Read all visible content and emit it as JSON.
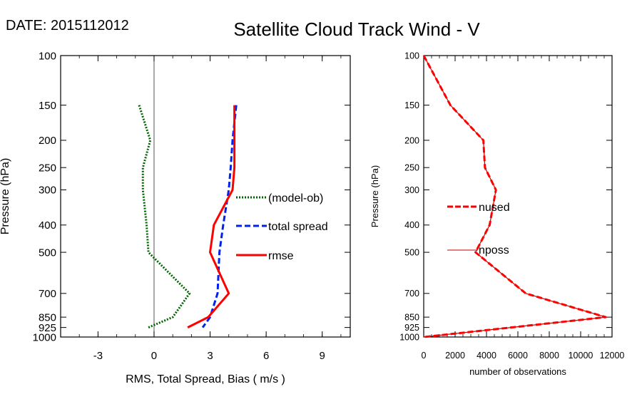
{
  "header": {
    "date_label": "DATE: 2015112012",
    "title": "Satellite Cloud Track Wind - V"
  },
  "chart_data": [
    {
      "type": "line",
      "ylabel": "Pressure (hPa)",
      "xlabel": "RMS, Total Spread, Bias ( m/s )",
      "xlim": [
        -5,
        10.5
      ],
      "xticks": [
        -3,
        0,
        3,
        6,
        9
      ],
      "ylim": [
        1000,
        100
      ],
      "yscale": "log",
      "yticks": [
        100,
        150,
        200,
        250,
        300,
        400,
        500,
        700,
        850,
        925,
        1000
      ],
      "zero_line": true,
      "legend_position": "right-middle",
      "series": [
        {
          "name": "(model-ob)",
          "color": "#006400",
          "style": "dotted",
          "x": [
            -0.8,
            -0.2,
            -0.6,
            -0.6,
            -0.4,
            -0.3,
            1.9,
            1.0,
            -0.3
          ],
          "y": [
            150,
            200,
            250,
            300,
            400,
            500,
            700,
            850,
            925
          ]
        },
        {
          "name": "total spread",
          "color": "#0022ee",
          "style": "dashed",
          "x": [
            4.4,
            4.2,
            4.1,
            4.0,
            3.7,
            3.5,
            3.4,
            3.0,
            2.6
          ],
          "y": [
            150,
            200,
            250,
            300,
            400,
            500,
            700,
            850,
            925
          ]
        },
        {
          "name": "rmse",
          "color": "#ff0000",
          "style": "solid",
          "x": [
            4.3,
            4.3,
            4.3,
            4.2,
            3.2,
            3.0,
            4.0,
            2.9,
            1.8
          ],
          "y": [
            150,
            200,
            250,
            300,
            400,
            500,
            700,
            850,
            925
          ]
        }
      ]
    },
    {
      "type": "line",
      "ylabel": "Pressure (hPa)",
      "xlabel": "number of observations",
      "xlim": [
        0,
        12000
      ],
      "xticks": [
        0,
        2000,
        4000,
        6000,
        8000,
        10000,
        12000
      ],
      "ylim": [
        1000,
        100
      ],
      "yscale": "log",
      "yticks": [
        100,
        150,
        200,
        250,
        300,
        400,
        500,
        700,
        850,
        925,
        1000
      ],
      "legend_position": "left-middle",
      "series": [
        {
          "name": "nused",
          "color": "#ff0000",
          "style": "dashed",
          "x": [
            0,
            1700,
            3800,
            3900,
            4600,
            4200,
            3300,
            6500,
            11600,
            0
          ],
          "y": [
            100,
            150,
            200,
            250,
            300,
            400,
            500,
            700,
            850,
            1000
          ]
        },
        {
          "name": "nposs",
          "color": "#cc0000",
          "style": "solid",
          "x": [
            0,
            1700,
            3800,
            3900,
            4600,
            4200,
            3300,
            6500,
            11600,
            0
          ],
          "y": [
            100,
            150,
            200,
            250,
            300,
            400,
            500,
            700,
            850,
            1000
          ]
        }
      ]
    }
  ]
}
